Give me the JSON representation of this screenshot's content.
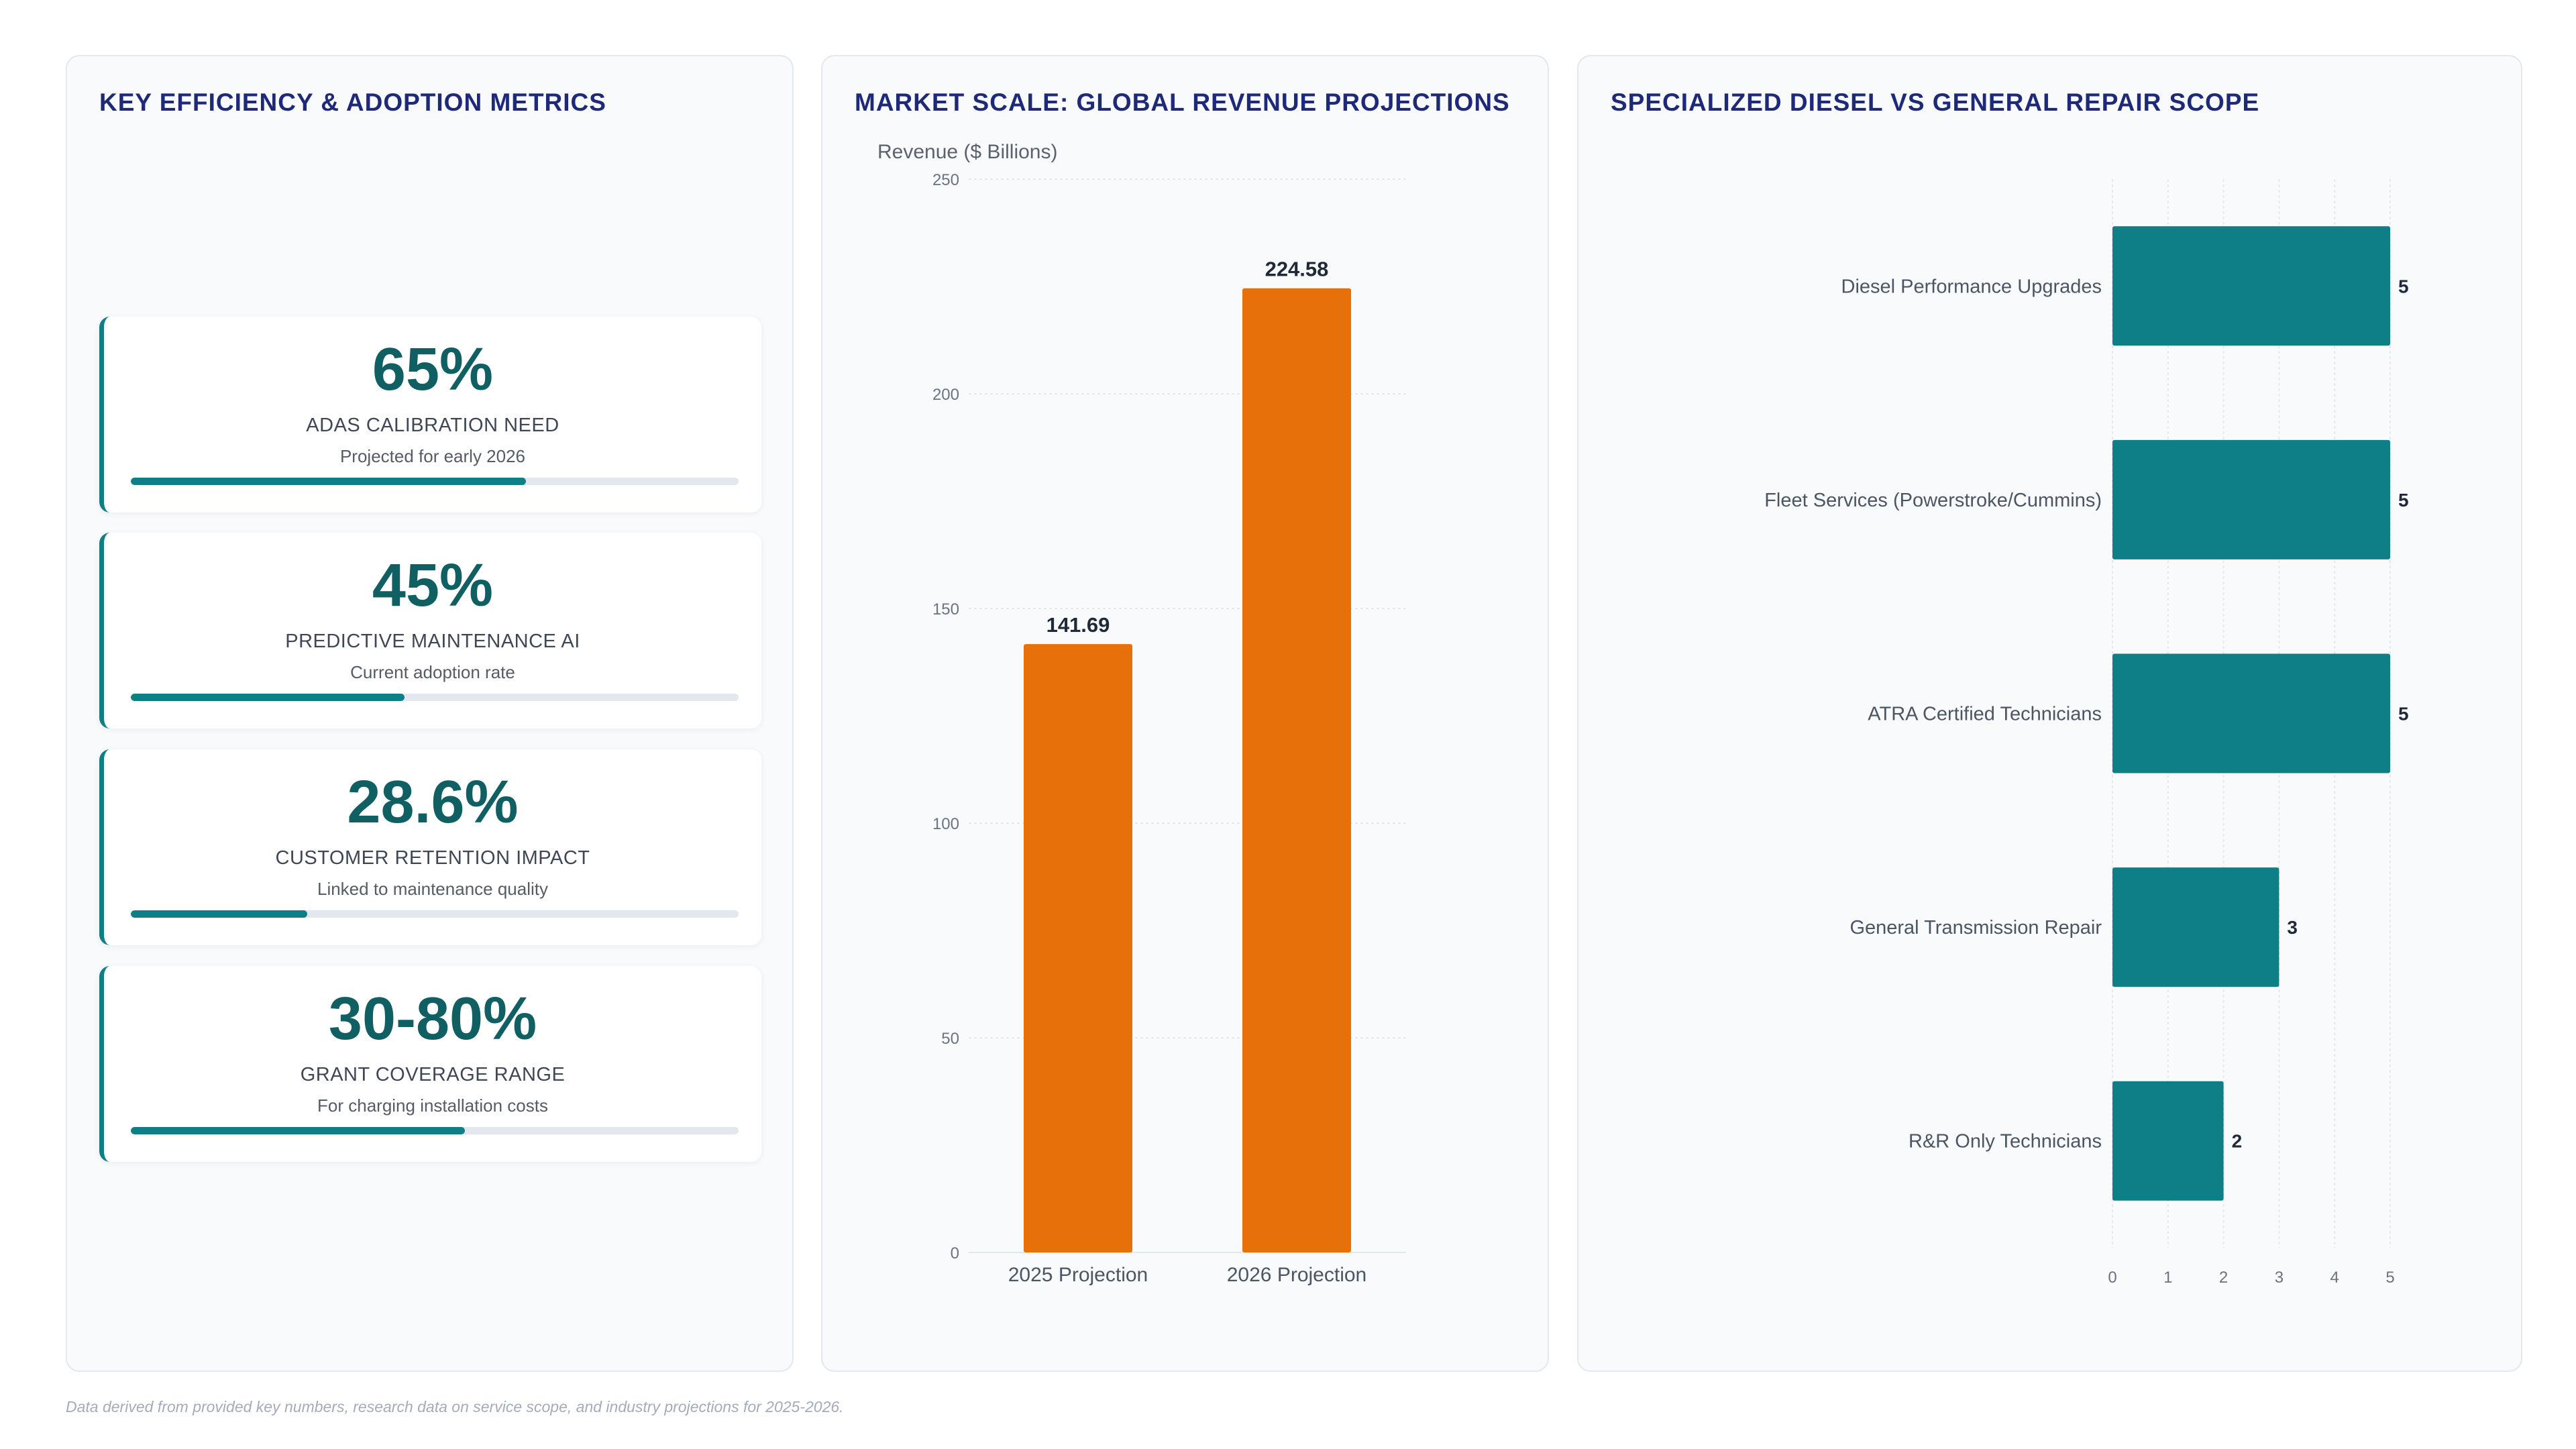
{
  "metrics_panel": {
    "title": "KEY EFFICIENCY & ADOPTION METRICS",
    "cards": [
      {
        "value": "65%",
        "label": "ADAS CALIBRATION NEED",
        "sub": "Projected for early 2026",
        "progress": 0.65
      },
      {
        "value": "45%",
        "label": "PREDICTIVE MAINTENANCE AI",
        "sub": "Current adoption rate",
        "progress": 0.45
      },
      {
        "value": "28.6%",
        "label": "CUSTOMER RETENTION IMPACT",
        "sub": "Linked to maintenance quality",
        "progress": 0.29
      },
      {
        "value": "30-80%",
        "label": "GRANT COVERAGE RANGE",
        "sub": "For charging installation costs",
        "progress": 0.55
      }
    ],
    "accent_color": "#0e7f86"
  },
  "chart_data": [
    {
      "type": "bar",
      "title": "MARKET SCALE: GLOBAL REVENUE PROJECTIONS",
      "ylabel": "Revenue ($ Billions)",
      "xlabel": "",
      "categories": [
        "2025 Projection",
        "2026 Projection"
      ],
      "values": [
        141.69,
        224.58
      ],
      "value_labels": [
        "141.69",
        "224.58"
      ],
      "ylim": [
        0,
        250
      ],
      "yticks": [
        "0",
        "50",
        "100",
        "150",
        "200",
        "250"
      ],
      "grid": true,
      "color": "#e8700a"
    },
    {
      "type": "bar",
      "orientation": "horizontal",
      "title": "SPECIALIZED DIESEL VS GENERAL REPAIR SCOPE",
      "categories": [
        "Diesel Performance Upgrades",
        "Fleet Services (Powerstroke/Cummins)",
        "ATRA Certified Technicians",
        "General Transmission Repair",
        "R&R Only Technicians"
      ],
      "values": [
        5,
        5,
        5,
        3,
        2
      ],
      "value_labels": [
        "5",
        "5",
        "5",
        "3",
        "2"
      ],
      "xlim": [
        0,
        5
      ],
      "xticks": [
        "0",
        "1",
        "2",
        "3",
        "4",
        "5"
      ],
      "grid": true,
      "color": "#0e7f86"
    }
  ],
  "footnote": "Data derived from provided key numbers, research data on service scope, and industry projections for 2025-2026."
}
